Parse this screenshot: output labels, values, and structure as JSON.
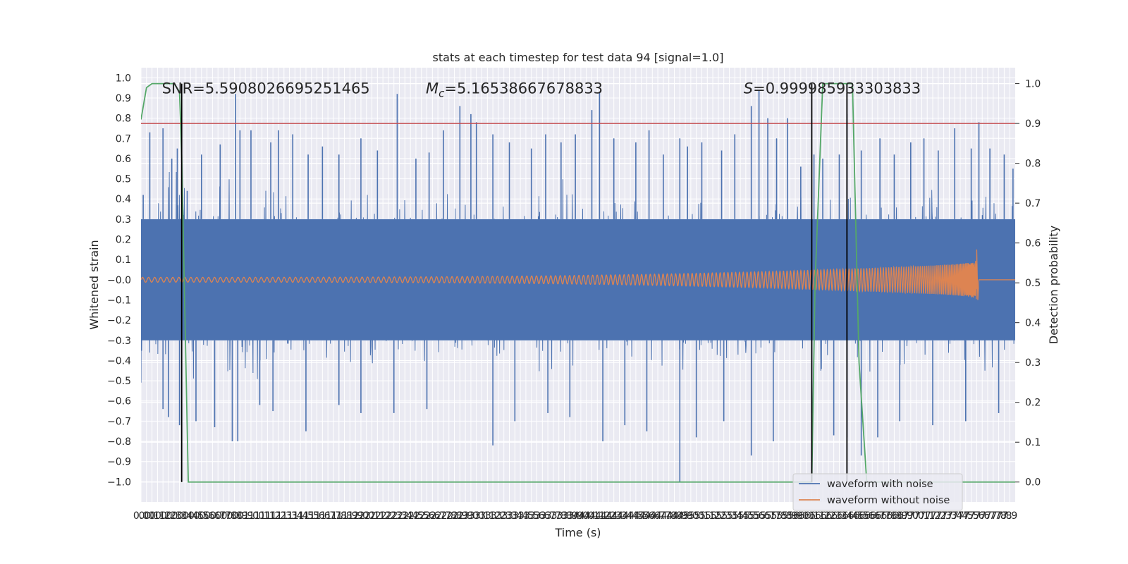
{
  "chart_data": {
    "type": "line",
    "title": "stats at each timestep for test data 94 [signal=1.0]",
    "xlabel": "Time (s)",
    "ylabel": "Whitened strain",
    "y2label": "Detection probability",
    "xlim": [
      0.0,
      7.95
    ],
    "ylim": [
      -1.1,
      1.05
    ],
    "y2lim": [
      -0.05,
      1.04
    ],
    "x_ticks": [
      0.0,
      0.05,
      0.1,
      0.15,
      0.2,
      0.25,
      0.3,
      0.35,
      0.4,
      0.45,
      0.5,
      0.55,
      0.6,
      0.65,
      0.7,
      0.75,
      0.8,
      0.85,
      0.9,
      0.95,
      1.0,
      1.05,
      1.1,
      1.15,
      1.2,
      1.25,
      1.3,
      1.35,
      1.4,
      1.45,
      1.5,
      1.55,
      1.6,
      1.65,
      1.7,
      1.75,
      1.8,
      1.85,
      1.9,
      1.95,
      2.0,
      2.05,
      2.1,
      2.15,
      2.2,
      2.25,
      2.3,
      2.35,
      2.4,
      2.45,
      2.5,
      2.55,
      2.6,
      2.65,
      2.7,
      2.75,
      2.8,
      2.85,
      2.9,
      2.95,
      3.0,
      3.05,
      3.1,
      3.15,
      3.2,
      3.25,
      3.3,
      3.35,
      3.4,
      3.45,
      3.5,
      3.55,
      3.6,
      3.65,
      3.7,
      3.75,
      3.8,
      3.85,
      3.9,
      3.95,
      4.0,
      4.05,
      4.1,
      4.15,
      4.2,
      4.25,
      4.3,
      4.35,
      4.4,
      4.45,
      4.5,
      4.55,
      4.6,
      4.65,
      4.7,
      4.75,
      4.8,
      4.85,
      4.9,
      4.95,
      5.0,
      5.05,
      5.1,
      5.15,
      5.2,
      5.25,
      5.3,
      5.35,
      5.4,
      5.45,
      5.5,
      5.55,
      5.6,
      5.65,
      5.7,
      5.75,
      5.8,
      5.85,
      5.9,
      5.95,
      6.0,
      6.05,
      6.1,
      6.15,
      6.2,
      6.25,
      6.3,
      6.35,
      6.4,
      6.45,
      6.5,
      6.55,
      6.6,
      6.65,
      6.7,
      6.75,
      6.8,
      6.85,
      6.9,
      6.95,
      7.0,
      7.05,
      7.1,
      7.15,
      7.2,
      7.25,
      7.3,
      7.35,
      7.4,
      7.45,
      7.5,
      7.55,
      7.6,
      7.65,
      7.7,
      7.75,
      7.8,
      7.85,
      7.9
    ],
    "x_tick_labels": [
      "0.0",
      "0.0",
      "0.1",
      "0.1",
      "0.2",
      "0.2",
      "0.3",
      "0.3",
      "0.4",
      "0.4",
      "0.5",
      "0.5",
      "0.6",
      "0.6",
      "0.7",
      "0.7",
      "0.8",
      "0.8",
      "0.9",
      "0.9",
      "1.0",
      "1.0",
      "1.1",
      "1.1",
      "1.2",
      "1.2",
      "1.3",
      "1.3",
      "1.4",
      "1.4",
      "1.5",
      "1.5",
      "1.6",
      "1.6",
      "1.7",
      "1.7",
      "1.8",
      "1.8",
      "1.9",
      "1.9",
      "2.0",
      "2.0",
      "2.1",
      "2.1",
      "2.2",
      "2.2",
      "2.3",
      "2.3",
      "2.4",
      "2.4",
      "2.5",
      "2.5",
      "2.6",
      "2.6",
      "2.7",
      "2.7",
      "2.8",
      "2.8",
      "2.9",
      "2.9",
      "3.0",
      "3.0",
      "3.1",
      "3.1",
      "3.2",
      "3.2",
      "3.3",
      "3.3",
      "3.4",
      "3.4",
      "3.5",
      "3.5",
      "3.6",
      "3.6",
      "3.7",
      "3.7",
      "3.8",
      "3.8",
      "3.9",
      "3.9",
      "4.0",
      "4.0",
      "4.1",
      "4.1",
      "4.2",
      "4.2",
      "4.3",
      "4.3",
      "4.4",
      "4.4",
      "4.5",
      "4.5",
      "4.6",
      "4.6",
      "4.7",
      "4.7",
      "4.8",
      "4.8",
      "4.9",
      "4.9",
      "5.0",
      "5.0",
      "5.1",
      "5.1",
      "5.2",
      "5.2",
      "5.3",
      "5.3",
      "5.4",
      "5.4",
      "5.5",
      "5.5",
      "5.6",
      "5.6",
      "5.7",
      "5.7",
      "5.8",
      "5.8",
      "5.9",
      "5.9",
      "6.0",
      "6.0",
      "6.1",
      "6.1",
      "6.2",
      "6.2",
      "6.3",
      "6.3",
      "6.4",
      "6.4",
      "6.5",
      "6.5",
      "6.6",
      "6.6",
      "6.7",
      "6.7",
      "6.8",
      "6.8",
      "6.9",
      "6.9",
      "7.0",
      "7.0",
      "7.1",
      "7.1",
      "7.2",
      "7.2",
      "7.3",
      "7.3",
      "7.4",
      "7.4",
      "7.5",
      "7.5",
      "7.6",
      "7.6",
      "7.7",
      "7.7",
      "7.8",
      "7.8",
      "7.9"
    ],
    "y_ticks": [
      -1.0,
      -0.9,
      -0.8,
      -0.7,
      -0.6,
      -0.5,
      -0.4,
      -0.3,
      -0.2,
      -0.1,
      0.0,
      0.1,
      0.2,
      0.3,
      0.4,
      0.5,
      0.6,
      0.7,
      0.8,
      0.9,
      1.0
    ],
    "y_tick_labels": [
      "−1.0",
      "−0.9",
      "−0.8",
      "−0.7",
      "−0.6",
      "−0.5",
      "−0.4",
      "−0.3",
      "−0.2",
      "−0.1",
      "−0.0",
      "0.1",
      "0.2",
      "0.3",
      "0.4",
      "0.5",
      "0.6",
      "0.7",
      "0.8",
      "0.9",
      "1.0"
    ],
    "y2_ticks": [
      0.0,
      0.1,
      0.2,
      0.3,
      0.4,
      0.5,
      0.6,
      0.7,
      0.8,
      0.9,
      1.0
    ],
    "y2_tick_labels": [
      "0.0",
      "0.1",
      "0.2",
      "0.3",
      "0.4",
      "0.5",
      "0.6",
      "0.7",
      "0.8",
      "0.9",
      "1.0"
    ],
    "grid": true,
    "background": "#EAEAF2",
    "series": [
      {
        "name": "waveform with noise",
        "color": "#4C72B0",
        "axis": "left",
        "kind": "noise",
        "noise_band_abs": 0.3,
        "peaks_x": [
          0.02,
          0.08,
          0.2,
          0.28,
          0.33,
          0.42,
          0.55,
          0.72,
          0.86,
          0.9,
          1.0,
          1.18,
          1.25,
          1.38,
          1.52,
          1.65,
          1.8,
          2.0,
          2.15,
          2.33,
          2.5,
          2.62,
          2.75,
          2.9,
          3.0,
          3.05,
          3.2,
          3.35,
          3.55,
          3.68,
          3.82,
          3.95,
          4.1,
          4.17,
          4.3,
          4.5,
          4.62,
          4.75,
          4.9,
          4.97,
          5.1,
          5.28,
          5.4,
          5.55,
          5.62,
          5.7,
          5.78,
          5.88,
          6.0,
          6.12,
          6.2,
          6.35,
          6.42,
          6.55,
          6.72,
          6.85,
          7.0,
          7.12,
          7.25,
          7.4,
          7.55,
          7.62,
          7.72,
          7.85,
          7.93
        ],
        "peaks_y": [
          0.42,
          0.73,
          0.75,
          0.6,
          0.65,
          0.44,
          0.62,
          0.67,
          0.92,
          0.74,
          0.74,
          0.68,
          0.74,
          0.72,
          0.62,
          0.66,
          0.62,
          0.7,
          0.64,
          0.92,
          0.6,
          0.63,
          0.74,
          0.86,
          0.82,
          0.78,
          0.72,
          0.68,
          0.65,
          0.72,
          0.68,
          0.72,
          0.84,
          0.93,
          0.7,
          0.68,
          0.74,
          0.62,
          0.7,
          0.66,
          0.68,
          0.64,
          0.72,
          0.86,
          0.94,
          0.8,
          0.7,
          0.8,
          0.56,
          0.62,
          0.6,
          0.62,
          0.82,
          0.64,
          0.7,
          0.62,
          0.68,
          0.7,
          0.64,
          0.75,
          0.65,
          0.78,
          0.65,
          0.62,
          0.55
        ],
        "troughs_x": [
          0.2,
          0.25,
          0.35,
          0.5,
          0.67,
          0.83,
          0.88,
          1.08,
          1.2,
          1.5,
          1.8,
          2.0,
          2.3,
          2.6,
          3.2,
          3.4,
          3.7,
          3.9,
          4.2,
          4.4,
          4.6,
          4.9,
          5.05,
          5.3,
          5.55,
          5.75,
          6.1,
          6.3,
          6.42,
          6.55,
          6.7,
          6.9,
          7.2,
          7.5,
          7.8
        ],
        "troughs_y": [
          -0.64,
          -0.68,
          -0.72,
          -0.7,
          -0.73,
          -0.8,
          -0.8,
          -0.62,
          -0.65,
          -0.75,
          -0.62,
          -0.66,
          -0.66,
          -0.64,
          -0.82,
          -0.7,
          -0.66,
          -0.68,
          -0.8,
          -0.72,
          -0.75,
          -1.0,
          -0.78,
          -0.7,
          -0.87,
          -0.8,
          -0.66,
          -0.77,
          -0.78,
          -0.87,
          -0.78,
          -0.7,
          -0.72,
          -0.7,
          -0.66
        ]
      },
      {
        "name": "waveform without noise",
        "color": "#DD8452",
        "axis": "left",
        "kind": "chirp",
        "merger_time": 7.6,
        "amplitude_start": 0.012,
        "amplitude_near_merger": 0.08,
        "peak_amplitude": 0.15,
        "post_merger_value": 0.0
      },
      {
        "name": "",
        "color": "#55A868",
        "axis": "right",
        "kind": "line",
        "x": [
          0.0,
          0.05,
          0.1,
          0.2,
          0.3,
          0.35,
          0.37,
          0.43,
          0.5,
          1.0,
          2.0,
          3.0,
          4.0,
          5.0,
          6.0,
          6.1,
          6.13,
          6.2,
          6.3,
          6.4,
          6.47,
          6.53,
          6.6,
          7.0,
          7.95
        ],
        "y": [
          0.91,
          0.99,
          1.0,
          1.0,
          1.0,
          0.98,
          0.82,
          0.0,
          0.0,
          0.0,
          0.0,
          0.0,
          0.0,
          0.0,
          0.0,
          0.0,
          0.5,
          1.0,
          1.0,
          1.0,
          1.0,
          0.3,
          0.0,
          0.0,
          0.0
        ]
      }
    ],
    "threshold": {
      "value": 0.9,
      "axis": "right",
      "color": "#C44E52"
    },
    "event_markers": {
      "color": "#000000",
      "x": [
        0.37,
        6.1,
        6.42
      ],
      "x_label": "",
      "y_range": [
        0.0,
        1.0
      ],
      "axis": "right"
    },
    "annotations": [
      {
        "prefix": "SNR=",
        "value": "5.5908026695251465",
        "italic_prefix": false,
        "x": 0.19,
        "y": 0.95
      },
      {
        "prefix": "M",
        "subscript": "c",
        "suffix": "=",
        "value": "5.16538667678833",
        "italic_prefix": true,
        "x": 2.59,
        "y": 0.95
      },
      {
        "prefix": "S",
        "suffix": "=",
        "value": "0.999985933303833",
        "italic_prefix": true,
        "x": 5.48,
        "y": 0.95
      }
    ],
    "legend": {
      "placement": "lower-right",
      "entries": [
        "waveform with noise",
        "waveform without noise"
      ]
    }
  }
}
